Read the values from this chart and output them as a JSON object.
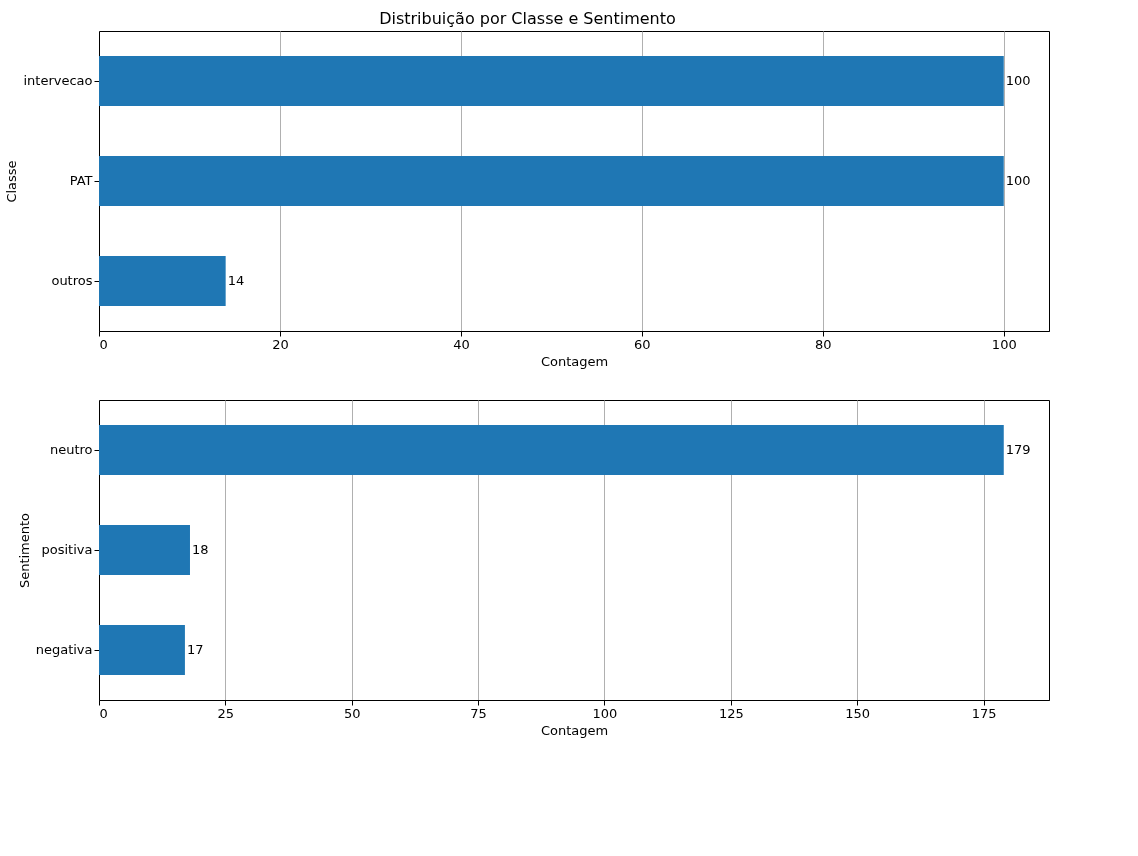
{
  "chart_data": [
    {
      "type": "bar",
      "orientation": "horizontal",
      "title": "Distribuição por Classe e Sentimento",
      "xlabel": "Contagem",
      "ylabel": "Classe",
      "categories": [
        "intervecao",
        "PAT",
        "outros"
      ],
      "values": [
        100,
        100,
        14
      ],
      "color": "#1f77b4",
      "xlim": [
        0,
        105
      ],
      "xticks": [
        0,
        20,
        40,
        60,
        80,
        100
      ],
      "grid": "x",
      "data_labels": true
    },
    {
      "type": "bar",
      "orientation": "horizontal",
      "xlabel": "Contagem",
      "ylabel": "Sentimento",
      "categories": [
        "neutro",
        "positiva",
        "negativa"
      ],
      "values": [
        179,
        18,
        17
      ],
      "color": "#1f77b4",
      "xlim": [
        0,
        187.95
      ],
      "xticks": [
        0,
        25,
        50,
        75,
        100,
        125,
        150,
        175
      ],
      "grid": "x",
      "data_labels": true
    }
  ]
}
